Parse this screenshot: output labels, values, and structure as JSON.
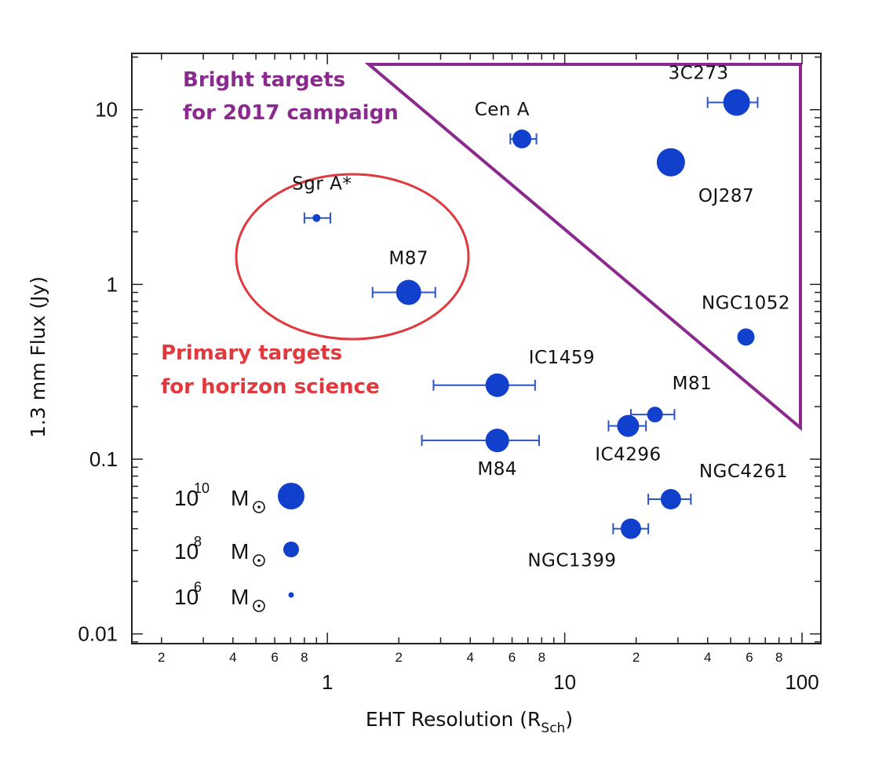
{
  "chart_data": {
    "type": "scatter",
    "xlabel": "EHT Resolution (R",
    "xlabel_sub": "Sch",
    "xlabel_close": ")",
    "ylabel": "1.3 mm Flux (Jy)",
    "x_scale": "log",
    "y_scale": "log",
    "xlim": [
      0.15,
      120
    ],
    "ylim": [
      0.0088,
      21
    ],
    "x_major_ticks": [
      {
        "value": 1,
        "label": "1"
      },
      {
        "value": 10,
        "label": "10"
      },
      {
        "value": 100,
        "label": "100"
      }
    ],
    "x_minor_ticks": [
      {
        "value": 0.2,
        "label": "2"
      },
      {
        "value": 0.4,
        "label": "4"
      },
      {
        "value": 0.6,
        "label": "6"
      },
      {
        "value": 0.8,
        "label": "8"
      },
      {
        "value": 2,
        "label": "2"
      },
      {
        "value": 4,
        "label": "4"
      },
      {
        "value": 6,
        "label": "6"
      },
      {
        "value": 8,
        "label": "8"
      },
      {
        "value": 20,
        "label": "2"
      },
      {
        "value": 40,
        "label": "4"
      },
      {
        "value": 60,
        "label": "6"
      },
      {
        "value": 80,
        "label": "8"
      }
    ],
    "y_major_ticks": [
      {
        "value": 0.01,
        "label": "0.01"
      },
      {
        "value": 0.1,
        "label": "0.1"
      },
      {
        "value": 1,
        "label": "1"
      },
      {
        "value": 10,
        "label": "10"
      }
    ],
    "points": [
      {
        "name": "Sgr A*",
        "x": 0.9,
        "y": 2.4,
        "xerr": [
          0.8,
          1.03
        ],
        "size": "1e6 Msun",
        "r": 5,
        "label_pos": "above-left"
      },
      {
        "name": "M87",
        "x": 2.2,
        "y": 0.9,
        "xerr": [
          1.55,
          2.85
        ],
        "size": "1e10 Msun",
        "r": 16,
        "label_pos": "above"
      },
      {
        "name": "Cen A",
        "x": 6.6,
        "y": 6.8,
        "xerr": [
          5.9,
          7.6
        ],
        "size": "1e8 Msun",
        "r": 12,
        "label_pos": "above-left"
      },
      {
        "name": "3C273",
        "x": 53,
        "y": 11,
        "xerr": [
          40,
          65
        ],
        "size": "1e10 Msun",
        "r": 17,
        "label_pos": "above-left"
      },
      {
        "name": "OJ287",
        "x": 28,
        "y": 5,
        "xerr": null,
        "size": "1e10 Msun",
        "r": 18,
        "label_pos": "below-right"
      },
      {
        "name": "NGC1052",
        "x": 58,
        "y": 0.5,
        "xerr": null,
        "size": "1e8 Msun",
        "r": 11,
        "label_pos": "above"
      },
      {
        "name": "IC1459",
        "x": 5.2,
        "y": 0.265,
        "xerr": [
          2.8,
          7.5
        ],
        "size": "1e9 Msun",
        "r": 15,
        "label_pos": "above-right"
      },
      {
        "name": "M81",
        "x": 24,
        "y": 0.18,
        "xerr": [
          19,
          29
        ],
        "size": "1e8 Msun",
        "r": 10,
        "label_pos": "above-right"
      },
      {
        "name": "IC4296",
        "x": 18.5,
        "y": 0.155,
        "xerr": [
          15.3,
          22
        ],
        "size": "1e9 Msun",
        "r": 14,
        "label_pos": "below"
      },
      {
        "name": "M84",
        "x": 5.2,
        "y": 0.128,
        "xerr": [
          2.5,
          7.8
        ],
        "size": "1e9 Msun",
        "r": 15,
        "label_pos": "below"
      },
      {
        "name": "NGC4261",
        "x": 28,
        "y": 0.059,
        "xerr": [
          22.5,
          34
        ],
        "size": "1e9 Msun",
        "r": 13,
        "label_pos": "above-right"
      },
      {
        "name": "NGC1399",
        "x": 19,
        "y": 0.04,
        "xerr": [
          16,
          22.5
        ],
        "size": "1e9 Msun",
        "r": 13,
        "label_pos": "below"
      }
    ],
    "size_legend": [
      {
        "base": "10",
        "exp": "10",
        "unit": "M",
        "r": 17
      },
      {
        "base": "10",
        "exp": "8",
        "unit": "M",
        "r": 10
      },
      {
        "base": "10",
        "exp": "6",
        "unit": "M",
        "r": 3.5
      }
    ],
    "annotations": {
      "bright_line1": "Bright targets",
      "bright_line2": "for 2017 campaign",
      "primary_line1": "Primary targets",
      "primary_line2": "for horizon science"
    },
    "colors": {
      "point": "#1140cc",
      "errorbar": "#2a55c8",
      "triangle": "#8b2a8e",
      "circle": "#e0393e",
      "bright_text": "#8b2a8e",
      "primary_text": "#e0393e",
      "axis": "#222222"
    }
  }
}
